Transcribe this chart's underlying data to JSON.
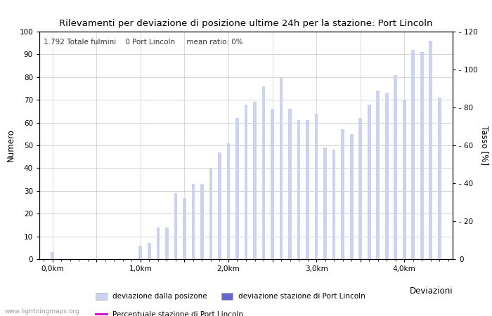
{
  "title": "Rilevamenti per deviazione di posizione ultime 24h per la stazione: Port Lincoln",
  "subtitle": "1.792 Totale fulmini    0 Port Lincoln     mean ratio: 0%",
  "xlabel": "Deviazioni",
  "ylabel_left": "Numero",
  "ylabel_right": "Tasso [%]",
  "bar_values": [
    3,
    0,
    0,
    0,
    0,
    0,
    0,
    0,
    0,
    0,
    6,
    7,
    14,
    14,
    29,
    27,
    33,
    33,
    40,
    47,
    51,
    62,
    68,
    69,
    76,
    66,
    80,
    66,
    61,
    61,
    64,
    49,
    48,
    57,
    55,
    62,
    68,
    74,
    73,
    81,
    70,
    92,
    91,
    96,
    71
  ],
  "bar_positions": [
    0,
    0.1,
    0.2,
    0.3,
    0.4,
    0.5,
    0.6,
    0.7,
    0.8,
    0.9,
    1.0,
    1.1,
    1.2,
    1.3,
    1.4,
    1.5,
    1.6,
    1.7,
    1.8,
    1.9,
    2.0,
    2.1,
    2.2,
    2.3,
    2.4,
    2.5,
    2.6,
    2.7,
    2.8,
    2.9,
    3.0,
    3.1,
    3.2,
    3.3,
    3.4,
    3.5,
    3.6,
    3.7,
    3.8,
    3.9,
    4.0,
    4.1,
    4.2,
    4.3,
    4.4
  ],
  "bar_color": "#cdd2f0",
  "bar_color_station": "#6666cc",
  "line_color": "#cc00cc",
  "xtick_positions": [
    0.0,
    0.5,
    1.0,
    1.5,
    2.0,
    2.5,
    3.0,
    3.5,
    4.0
  ],
  "xtick_labels": [
    "0,0km",
    "",
    "1,0km",
    "",
    "2,0km",
    "",
    "3,0km",
    "",
    "4,0km"
  ],
  "ylim_left": [
    0,
    100
  ],
  "ylim_right": [
    0,
    120
  ],
  "yticks_left": [
    0,
    10,
    20,
    30,
    40,
    50,
    60,
    70,
    80,
    90,
    100
  ],
  "yticks_right": [
    0,
    20,
    40,
    60,
    80,
    100,
    120
  ],
  "ytick_right_labels": [
    "0",
    "- 20",
    "- 40",
    "- 60",
    "- 80",
    "- 100",
    "- 120"
  ],
  "background_color": "#ffffff",
  "grid_color": "#cccccc",
  "watermark": "www.lightningmaps.org",
  "bar_width": 0.038,
  "legend_label_0": "deviazione dalla posizone",
  "legend_label_1": "deviazione stazione di Port Lincoln",
  "legend_label_2": "Percentuale stazione di Port Lincoln"
}
